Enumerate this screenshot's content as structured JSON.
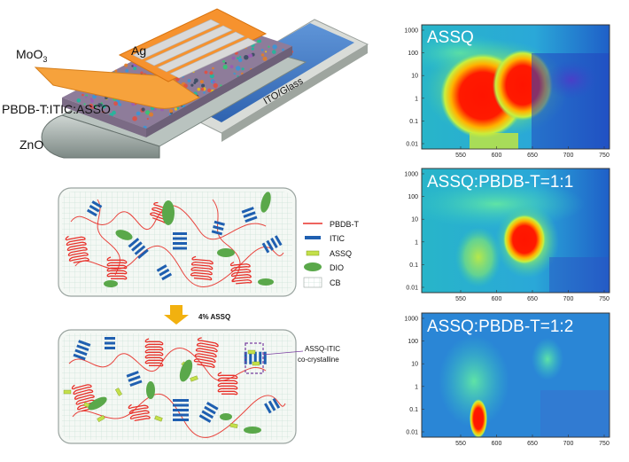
{
  "device": {
    "layers": {
      "moo3": "MoO",
      "moo3_sub": "3",
      "ag": "Ag",
      "active": "PBDB-T:ITIC:ASSO",
      "zno": "ZnO",
      "ito": "ITO/Glass"
    }
  },
  "morphology": {
    "legend": [
      "PBDB-T",
      "ITIC",
      "ASSQ",
      "DIO",
      "CB"
    ],
    "arrow_label": "4% ASSQ",
    "callout": [
      "ASSQ-ITIC",
      "co-crystalline"
    ]
  },
  "maps": {
    "panels": [
      {
        "title": "ASSQ"
      },
      {
        "title": "ASSQ:PBDB-T=1:1"
      },
      {
        "title": "ASSQ:PBDB-T=1:2"
      }
    ],
    "y_ticks": [
      "1000",
      "100",
      "10",
      "1",
      "0.1",
      "0.01"
    ],
    "x_ticks": [
      "550",
      "600",
      "650",
      "700",
      "750"
    ]
  },
  "colors": {
    "pbdbt": "#e8312a",
    "itic": "#1f5fb0",
    "assq": "#c4e04a",
    "dio": "#5aa84a",
    "cb_grid": "#cfe3da",
    "ag": "#f6922e",
    "map_bg": "#1d6fd1",
    "map_hot": "#ff1a00"
  }
}
